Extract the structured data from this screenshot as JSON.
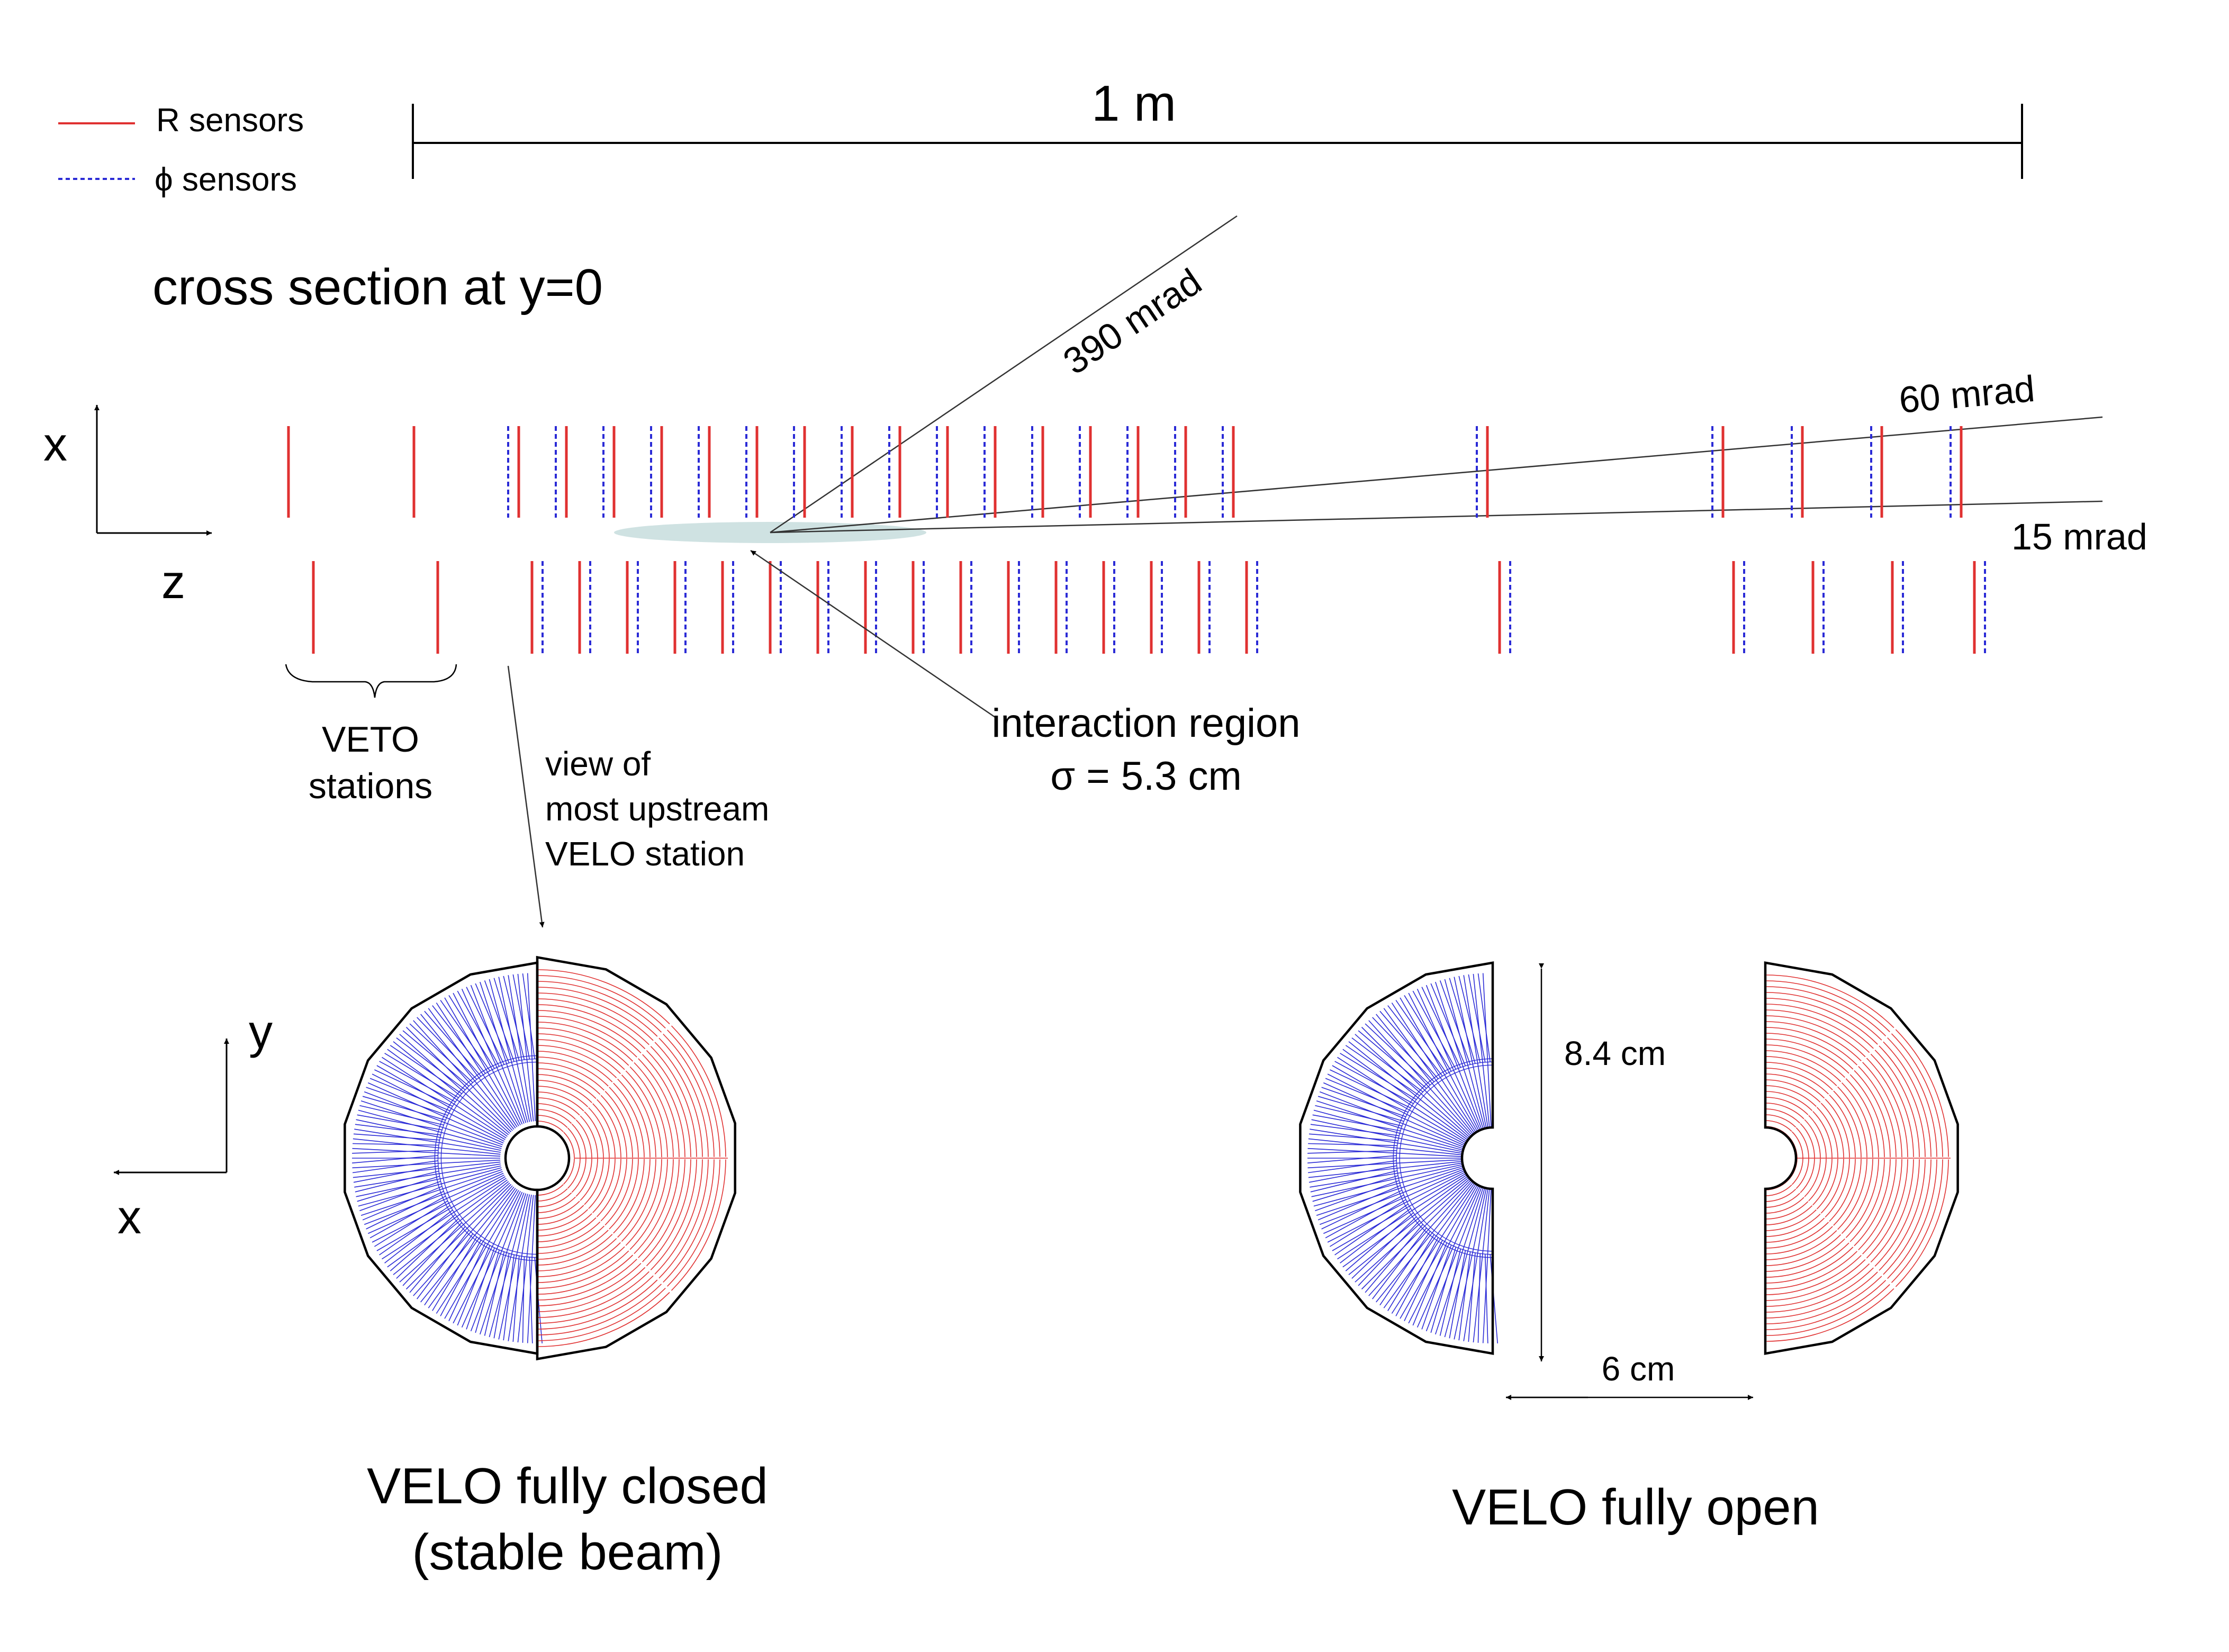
{
  "legend": {
    "r_label": "R sensors",
    "phi_symbol": "ϕ",
    "phi_label": "sensors"
  },
  "colors": {
    "r_sensor": "#e03131",
    "phi_sensor": "#2b2bd6",
    "interaction": "#cfe2e2",
    "outline": "#000000"
  },
  "scale": {
    "label": "1 m"
  },
  "section_title": "cross section at y=0",
  "axes_top": {
    "x": "x",
    "z": "z"
  },
  "axes_bottom": {
    "y": "y",
    "x": "x"
  },
  "angles": [
    "390 mrad",
    "60 mrad",
    "15 mrad"
  ],
  "veto": {
    "line1": "VETO",
    "line2": "stations"
  },
  "view_note": {
    "line1": "view of",
    "line2": "most upstream",
    "line3": "VELO station"
  },
  "interaction": {
    "line1": "interaction region",
    "sigma": "σ",
    "line2": "= 5.3 cm"
  },
  "dimensions": {
    "height": "8.4 cm",
    "gap": "6 cm"
  },
  "captions": {
    "closed_line1": "VELO fully closed",
    "closed_line2": "(stable beam)",
    "open": "VELO fully open"
  }
}
